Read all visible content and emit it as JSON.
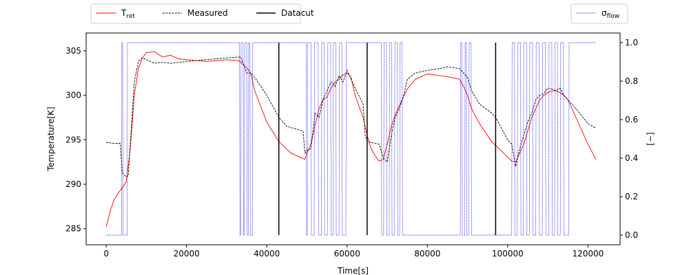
{
  "chart_data": {
    "type": "line",
    "xlabel": "Time[s]",
    "ylabel": "Temperature[K]",
    "y2label": "[−]",
    "xlim": [
      -5000,
      128000
    ],
    "ylim": [
      283.2,
      307.0
    ],
    "y2lim": [
      -0.05,
      1.05
    ],
    "xticks": [
      0,
      20000,
      40000,
      60000,
      80000,
      100000,
      120000
    ],
    "yticks": [
      285,
      290,
      295,
      300,
      305
    ],
    "y2ticks": [
      0.0,
      0.2,
      0.4,
      0.6,
      0.8,
      1.0
    ],
    "xtick_labels": [
      "0",
      "20000",
      "40000",
      "60000",
      "80000",
      "100000",
      "120000"
    ],
    "ytick_labels": [
      "285",
      "290",
      "295",
      "300",
      "305"
    ],
    "y2tick_labels": [
      "0.0",
      "0.2",
      "0.4",
      "0.6",
      "0.8",
      "1.0"
    ],
    "legend_left": [
      {
        "name": "T",
        "sub": "ret",
        "color": "#ff0000",
        "style": "solid"
      },
      {
        "name": "Measured",
        "sub": "",
        "color": "#000000",
        "style": "dashed"
      },
      {
        "name": "Datacut",
        "sub": "",
        "color": "#000000",
        "style": "solid-thick"
      }
    ],
    "legend_right": [
      {
        "name": "σ",
        "sub": "flow",
        "color": "#0000ff",
        "style": "dotted"
      }
    ],
    "series": [
      {
        "name": "T_ret",
        "axis": "left",
        "color": "#ff0000",
        "x": [
          0,
          1000,
          2000,
          3000,
          4000,
          5000,
          6000,
          7000,
          8000,
          9000,
          10000,
          12000,
          14000,
          16000,
          18000,
          20000,
          25000,
          30000,
          33000,
          34000,
          35000,
          36000,
          37000,
          40000,
          43000,
          46000,
          49500,
          50000,
          51000,
          52000,
          53000,
          54000,
          55000,
          56000,
          57000,
          58000,
          59000,
          60000,
          61000,
          62000,
          64000,
          65000,
          66000,
          67000,
          68000,
          69000,
          70000,
          71000,
          72000,
          73000,
          74000,
          75000,
          77000,
          80000,
          83000,
          85000,
          88000,
          89000,
          90000,
          91000,
          93000,
          96000,
          99000,
          101000,
          102000,
          103000,
          104000,
          105000,
          106000,
          107000,
          108000,
          109000,
          110000,
          111000,
          112000,
          113000,
          114000,
          115000,
          117000,
          120000,
          122000
        ],
        "y": [
          285.2,
          287.0,
          288.3,
          289.0,
          289.6,
          290.3,
          294.0,
          300.0,
          303.0,
          304.2,
          304.8,
          304.9,
          304.3,
          304.5,
          304.1,
          304.0,
          303.8,
          304.0,
          303.9,
          303.5,
          303.1,
          302.5,
          300.5,
          297.0,
          294.8,
          293.5,
          292.8,
          293.5,
          294.5,
          296.5,
          298.5,
          299.5,
          299.8,
          300.8,
          301.5,
          301.8,
          302.3,
          302.5,
          302.0,
          300.0,
          297.5,
          295.5,
          294.0,
          293.2,
          292.6,
          292.8,
          294.5,
          296.5,
          297.8,
          298.8,
          299.8,
          300.7,
          301.8,
          302.4,
          302.2,
          302.1,
          301.8,
          301.0,
          300.0,
          298.5,
          296.8,
          294.8,
          293.5,
          292.6,
          292.5,
          293.5,
          294.5,
          296.0,
          297.5,
          298.5,
          299.5,
          300.0,
          300.3,
          300.5,
          300.5,
          300.3,
          300.0,
          299.5,
          297.5,
          294.5,
          292.8
        ]
      },
      {
        "name": "Measured",
        "axis": "left",
        "color": "#000000",
        "x": [
          0,
          2000,
          3500,
          4000,
          5000,
          5500,
          6000,
          7000,
          8000,
          9000,
          10000,
          12000,
          14000,
          16000,
          20000,
          25000,
          30000,
          33500,
          34000,
          35000,
          36000,
          37000,
          40000,
          43000,
          45000,
          49000,
          49500,
          50000,
          51000,
          52000,
          53000,
          54000,
          55000,
          56000,
          57000,
          58000,
          59000,
          60000,
          61000,
          62000,
          64000,
          64500,
          65000,
          68000,
          69000,
          70000,
          71000,
          72000,
          73000,
          74000,
          75000,
          77000,
          80000,
          83000,
          85000,
          88000,
          89000,
          90000,
          91000,
          93000,
          96000,
          97000,
          100000,
          101000,
          102000,
          103000,
          104000,
          105000,
          106000,
          107000,
          108000,
          109000,
          110000,
          111000,
          112000,
          113000,
          114000,
          115000,
          117000,
          120000,
          122000
        ],
        "y": [
          294.7,
          294.6,
          294.6,
          291.3,
          290.8,
          291.0,
          294.5,
          301.5,
          303.8,
          304.2,
          304.0,
          303.6,
          303.7,
          303.6,
          303.8,
          304.0,
          304.2,
          304.3,
          303.7,
          302.5,
          302.5,
          302.0,
          300.0,
          297.5,
          296.5,
          296.0,
          293.5,
          293.8,
          294.0,
          298.0,
          297.5,
          299.5,
          300.5,
          301.5,
          301.0,
          302.2,
          301.5,
          302.8,
          301.8,
          300.8,
          299.0,
          295.5,
          294.8,
          294.5,
          293.0,
          292.5,
          295.5,
          297.5,
          298.5,
          299.8,
          301.8,
          302.5,
          302.8,
          303.0,
          303.2,
          303.0,
          302.5,
          302.0,
          300.5,
          299.0,
          298.0,
          297.5,
          295.0,
          294.5,
          292.0,
          294.0,
          295.5,
          297.0,
          298.0,
          299.5,
          300.0,
          300.2,
          300.8,
          300.7,
          300.5,
          300.8,
          300.0,
          299.5,
          298.5,
          296.8,
          296.3
        ]
      },
      {
        "name": "σ_flow",
        "axis": "right",
        "color": "#0000ff",
        "x": [
          0,
          3800,
          3900,
          4100,
          4200,
          5200,
          5300,
          33200,
          33300,
          33500,
          33600,
          34100,
          34200,
          34400,
          34500,
          35000,
          35100,
          35400,
          35500,
          35800,
          35900,
          36400,
          36500,
          49800,
          49900,
          50100,
          50200,
          51000,
          51100,
          51800,
          51900,
          52800,
          52900,
          53600,
          53700,
          54300,
          54400,
          55100,
          55200,
          55900,
          56000,
          56500,
          56600,
          57200,
          57300,
          58000,
          58100,
          58700,
          58800,
          59700,
          59800,
          68500,
          68600,
          69100,
          69200,
          69800,
          69900,
          70500,
          70600,
          71100,
          71200,
          71800,
          71900,
          72500,
          72600,
          73100,
          73200,
          73700,
          73800,
          88200,
          88300,
          88600,
          88700,
          89300,
          89400,
          89700,
          89800,
          90300,
          90400,
          90900,
          91000,
          101000,
          101100,
          101700,
          101800,
          102400,
          102500,
          103200,
          103300,
          103900,
          104000,
          104700,
          104800,
          105400,
          105500,
          106200,
          106300,
          107000,
          107100,
          107800,
          107900,
          108600,
          108700,
          109400,
          109500,
          110200,
          110300,
          111000,
          111100,
          111700,
          111800,
          112400,
          112500,
          113100,
          113200,
          113900,
          114000,
          115200,
          115300,
          122000
        ],
        "y": [
          0,
          0,
          1,
          1,
          0,
          0,
          1,
          1,
          0,
          0,
          1,
          1,
          0,
          0,
          1,
          1,
          0,
          0,
          1,
          1,
          0,
          0,
          1,
          1,
          0,
          0,
          1,
          1,
          0,
          0,
          1,
          1,
          0,
          0,
          1,
          1,
          0,
          0,
          1,
          1,
          0,
          0,
          1,
          1,
          0,
          0,
          1,
          1,
          0,
          0,
          1,
          1,
          0,
          0,
          1,
          1,
          0,
          0,
          1,
          1,
          0,
          0,
          1,
          1,
          0,
          0,
          1,
          1,
          0,
          0,
          1,
          1,
          0,
          0,
          1,
          1,
          0,
          0,
          1,
          1,
          0,
          0,
          1,
          1,
          0,
          0,
          1,
          1,
          0,
          0,
          1,
          1,
          0,
          0,
          1,
          1,
          0,
          0,
          1,
          1,
          0,
          0,
          1,
          1,
          0,
          0,
          1,
          1,
          0,
          0,
          1,
          1,
          0,
          0,
          1,
          1,
          0,
          0,
          1,
          1
        ],
        "note_unused": ""
      }
    ],
    "datacut_x": [
      43000,
      65000,
      97000
    ],
    "datacut_yrange": [
      0.0,
      1.0
    ],
    "grid": false
  }
}
